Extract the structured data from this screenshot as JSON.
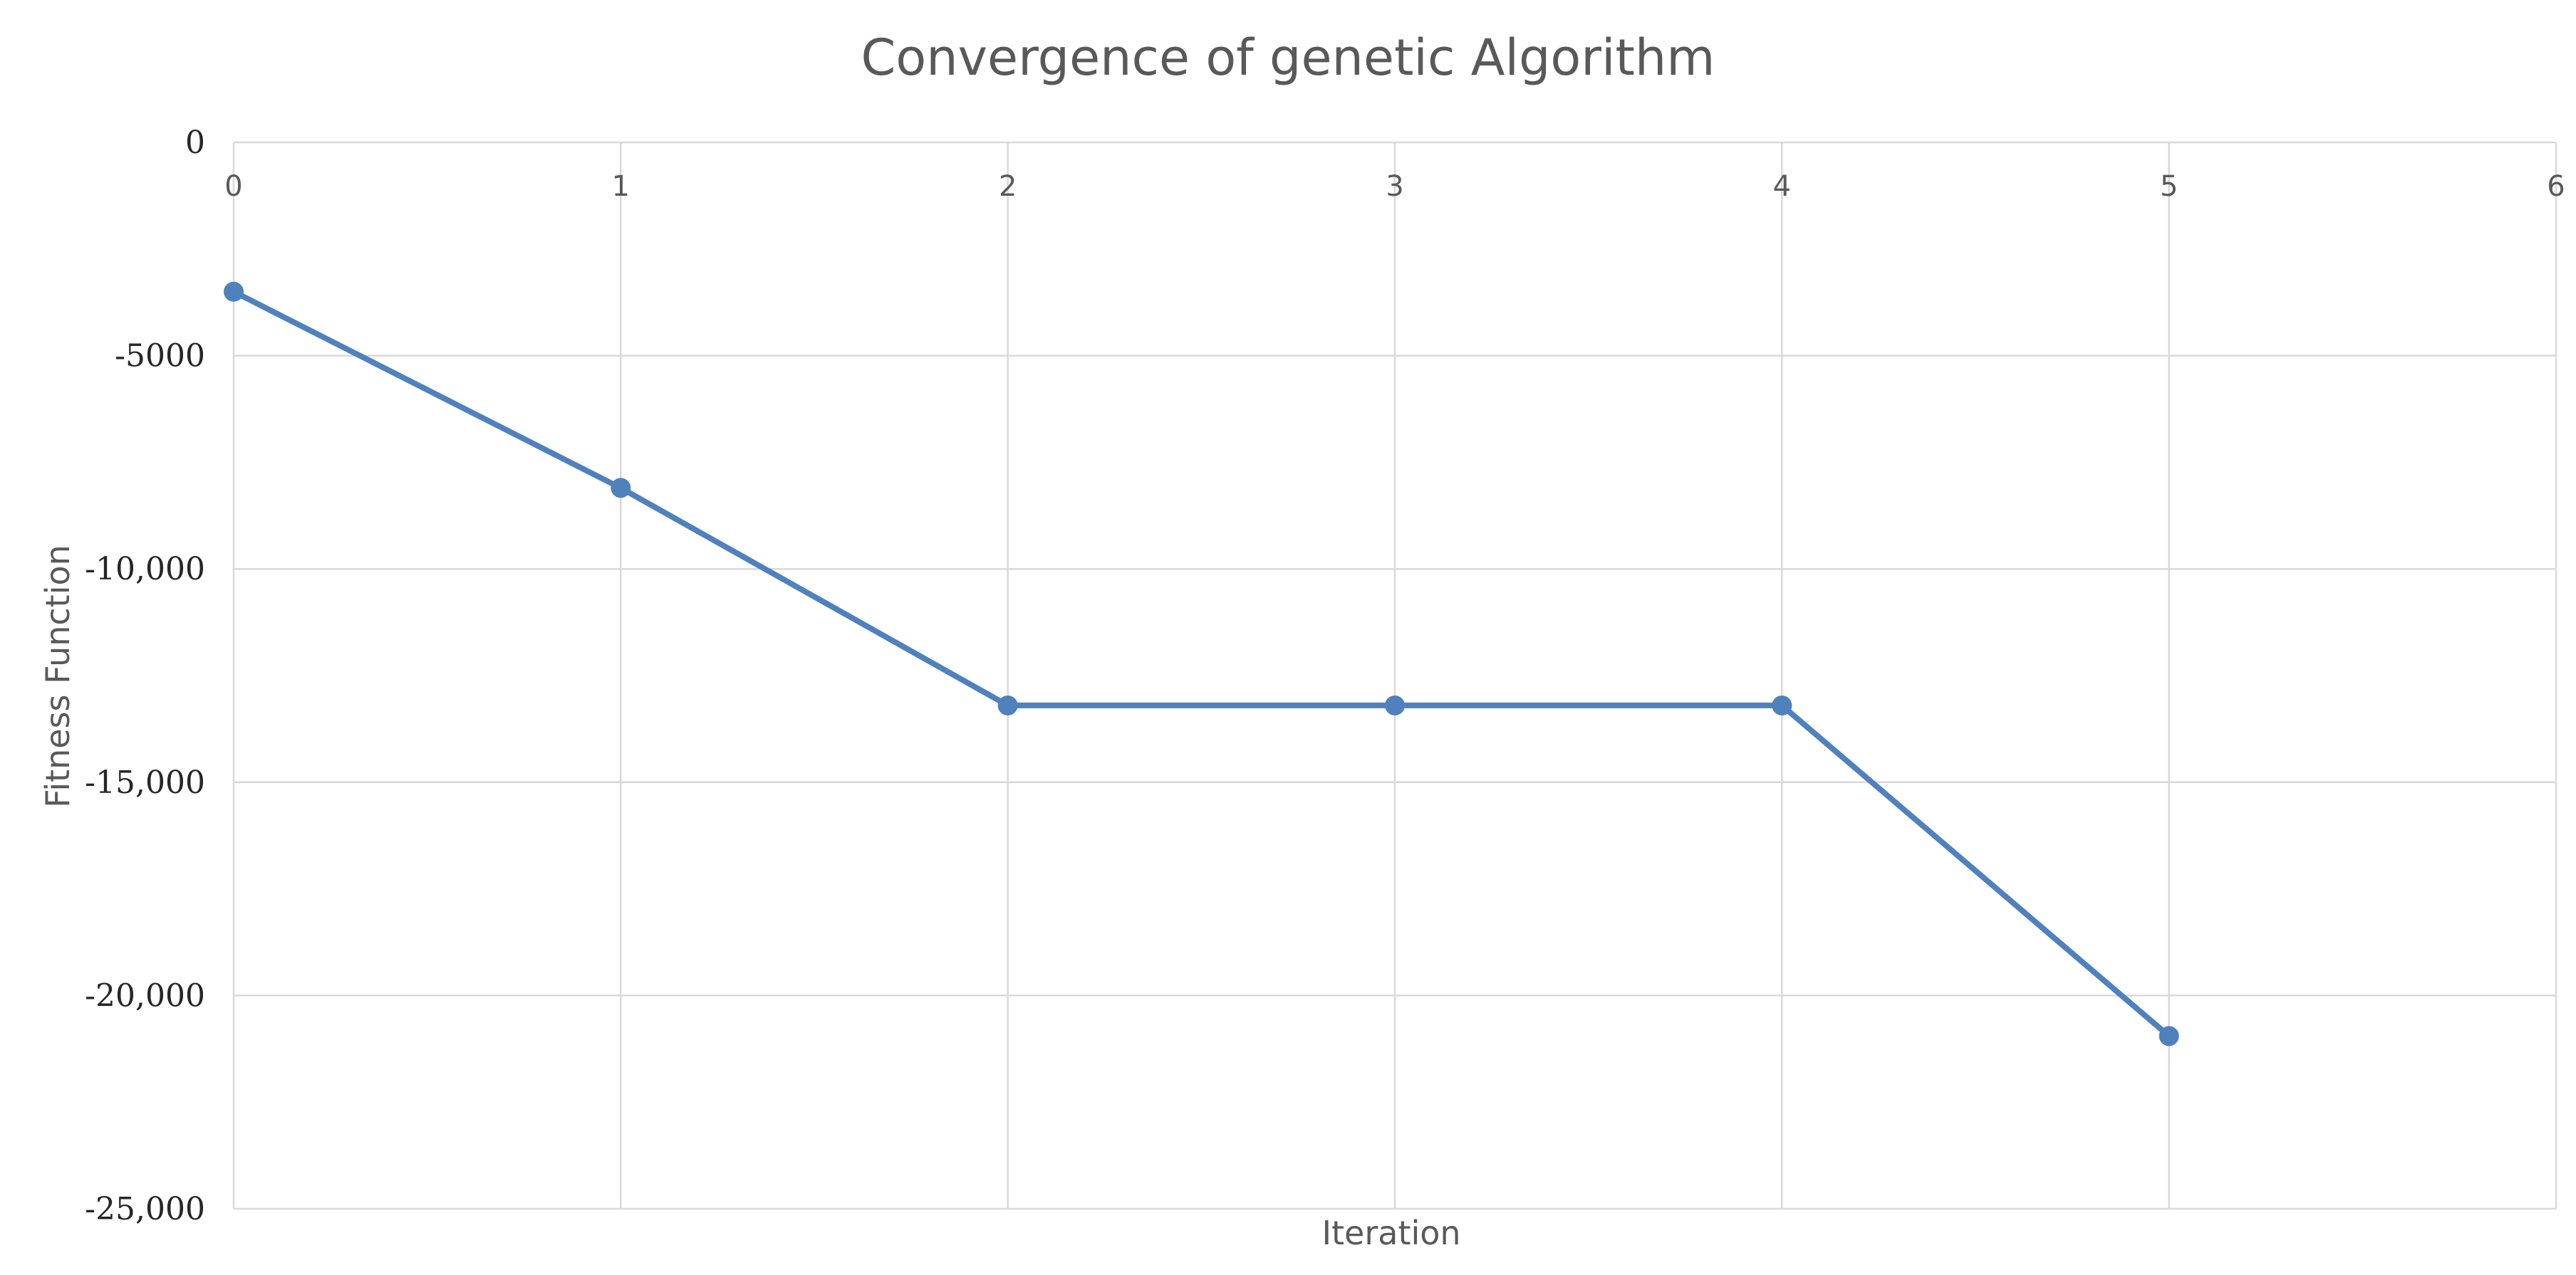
{
  "chart_data": {
    "type": "line",
    "title": "Convergence of genetic Algorithm",
    "xlabel": "Iteration",
    "ylabel": "Fitness Function",
    "xlim": [
      0,
      6
    ],
    "ylim": [
      -25000,
      0
    ],
    "x_ticks": [
      "0",
      "1",
      "2",
      "3",
      "4",
      "5",
      "6"
    ],
    "y_ticks": [
      "0",
      "-5000",
      "-10,000",
      "-15,000",
      "-20,000",
      "-25,000"
    ],
    "y_tick_values": [
      0,
      -5000,
      -10000,
      -15000,
      -20000,
      -25000
    ],
    "x_axis_position": "top",
    "grid": true,
    "legend": "none",
    "series": [
      {
        "x": [
          0,
          1,
          2,
          3,
          4,
          5
        ],
        "values": [
          -3500,
          -8100,
          -13200,
          -13200,
          -13200,
          -20950
        ],
        "color": "#4f81bd"
      }
    ]
  }
}
